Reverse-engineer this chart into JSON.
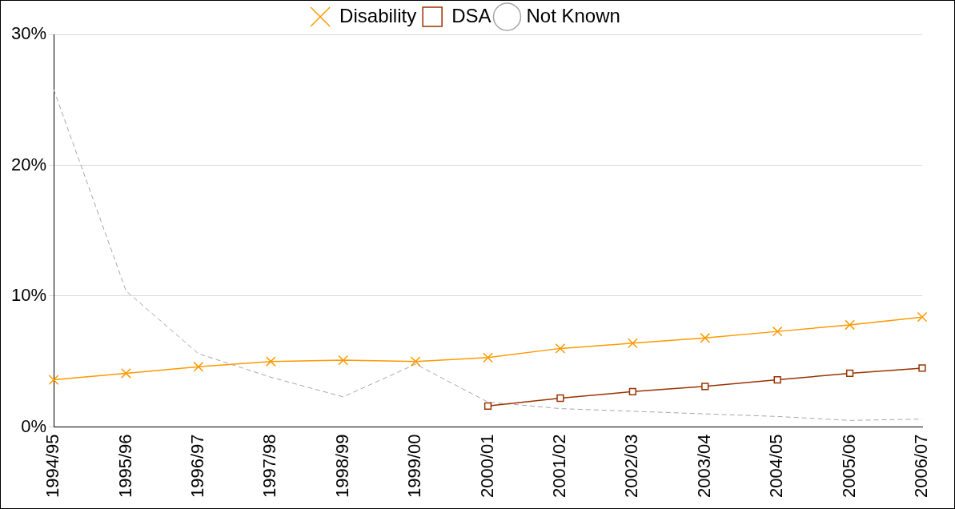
{
  "chart_data": {
    "type": "line",
    "categories": [
      "1994/95",
      "1995/96",
      "1996/97",
      "1997/98",
      "1998/99",
      "1999/00",
      "2000/01",
      "2001/02",
      "2002/03",
      "2003/04",
      "2004/05",
      "2005/06",
      "2006/07"
    ],
    "series": [
      {
        "name": "Disability",
        "color": "#ff9900",
        "marker": "cross",
        "line_style": "solid",
        "values": [
          3.6,
          4.1,
          4.6,
          5.0,
          5.1,
          5.0,
          5.3,
          6.0,
          6.4,
          6.8,
          7.3,
          7.8,
          8.4
        ]
      },
      {
        "name": "DSA",
        "color": "#993300",
        "marker": "square",
        "line_style": "solid",
        "values": [
          null,
          null,
          null,
          null,
          null,
          null,
          1.6,
          2.2,
          2.7,
          3.1,
          3.6,
          4.1,
          4.5
        ]
      },
      {
        "name": "Not Known",
        "color": "#a6a6a6",
        "marker": "none",
        "line_style": "dashed",
        "values": [
          25.8,
          10.4,
          5.6,
          3.8,
          2.3,
          4.8,
          1.9,
          1.4,
          1.2,
          1.0,
          0.8,
          0.5,
          0.6
        ]
      }
    ],
    "ylim": [
      0,
      30
    ],
    "yticks": [
      {
        "value": 0,
        "label": "0%"
      },
      {
        "value": 10,
        "label": "10%"
      },
      {
        "value": 20,
        "label": "20%"
      },
      {
        "value": 30,
        "label": "30%"
      }
    ],
    "grid": "y",
    "legend": "top"
  }
}
